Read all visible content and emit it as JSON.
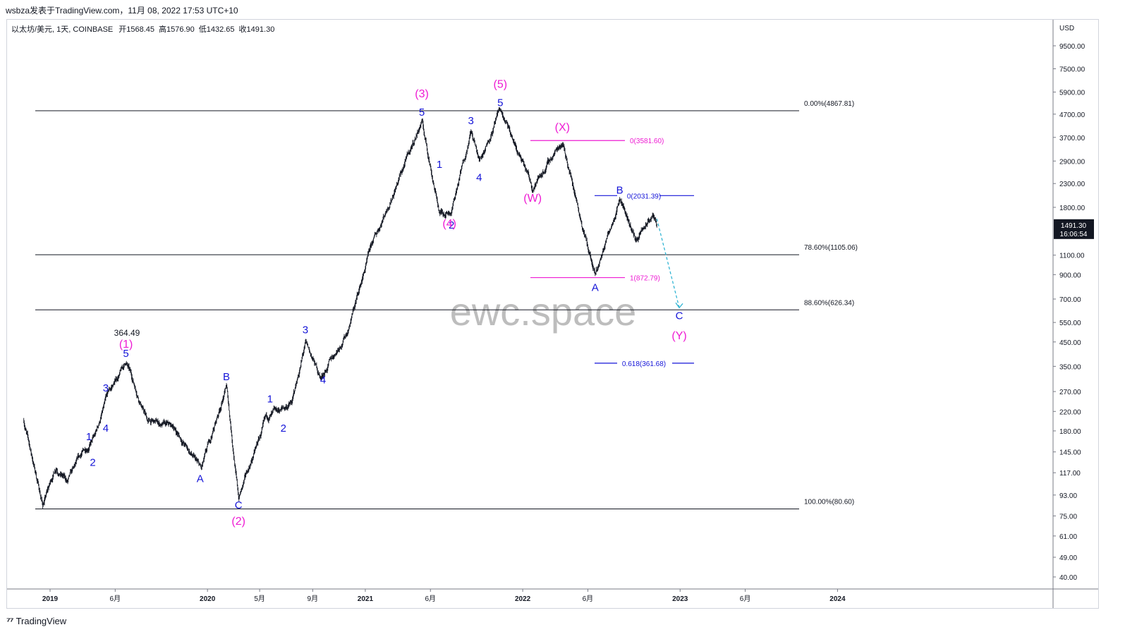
{
  "header": {
    "publisher_line": "wsbza发表于TradingView.com，11月 08, 2022 17:53 UTC+10"
  },
  "symbol_bar": {
    "name": "以太坊/美元, 1天, COINBASE",
    "open_label": "开",
    "open": "1568.45",
    "high_label": "高",
    "high": "1576.90",
    "low_label": "低",
    "low": "1432.65",
    "close_label": "收",
    "close": "1491.30"
  },
  "price_axis": {
    "currency": "USD",
    "ticks": [
      "9500.00",
      "7500.00",
      "5900.00",
      "4700.00",
      "3700.00",
      "2900.00",
      "2300.00",
      "1800.00",
      "1100.00",
      "900.00",
      "700.00",
      "550.00",
      "450.00",
      "350.00",
      "270.00",
      "220.00",
      "180.00",
      "145.00",
      "117.00",
      "93.00",
      "75.00",
      "61.00",
      "49.00",
      "40.00"
    ],
    "last_price": "1491.30",
    "countdown": "16:06:54"
  },
  "time_axis": {
    "ticks": [
      "2019",
      "6月",
      "2020",
      "5月",
      "9月",
      "2021",
      "6月",
      "2022",
      "6月",
      "2023",
      "6月",
      "2024"
    ],
    "bold": [
      true,
      false,
      true,
      false,
      false,
      true,
      false,
      true,
      false,
      true,
      false,
      true
    ]
  },
  "watermark": "ewc.space",
  "footer": {
    "brand": "TradingView"
  },
  "colors": {
    "candles": "#131722",
    "wave_blue": "#1515d8",
    "wave_magenta": "#ee1bd3",
    "projection": "#33b5d4",
    "fib_lines": "#131722"
  },
  "chart_data": {
    "type": "candlestick",
    "symbol": "以太坊/美元",
    "scale": "log",
    "ylim": [
      40,
      9500
    ],
    "xlim": [
      "2018-11",
      "2024-04"
    ],
    "price_path": [
      {
        "date": "2018-11-01",
        "price": 200
      },
      {
        "date": "2018-12-15",
        "price": 84
      },
      {
        "date": "2019-01-15",
        "price": 125
      },
      {
        "date": "2019-02-10",
        "price": 106
      },
      {
        "date": "2019-03-15",
        "price": 140
      },
      {
        "date": "2019-04-15",
        "price": 170
      },
      {
        "date": "2019-05-15",
        "price": 260
      },
      {
        "date": "2019-06-26",
        "price": 364.49
      },
      {
        "date": "2019-08-15",
        "price": 200
      },
      {
        "date": "2019-10-15",
        "price": 185
      },
      {
        "date": "2019-12-18",
        "price": 120
      },
      {
        "date": "2020-02-14",
        "price": 285
      },
      {
        "date": "2020-03-13",
        "price": 90
      },
      {
        "date": "2020-05-15",
        "price": 200
      },
      {
        "date": "2020-07-15",
        "price": 240
      },
      {
        "date": "2020-08-15",
        "price": 440
      },
      {
        "date": "2020-09-20",
        "price": 310
      },
      {
        "date": "2020-11-20",
        "price": 500
      },
      {
        "date": "2021-01-15",
        "price": 1200
      },
      {
        "date": "2021-05-12",
        "price": 4360
      },
      {
        "date": "2021-06-22",
        "price": 1700
      },
      {
        "date": "2021-07-20",
        "price": 1750
      },
      {
        "date": "2021-09-03",
        "price": 3950
      },
      {
        "date": "2021-09-22",
        "price": 2900
      },
      {
        "date": "2021-11-10",
        "price": 4867.81
      },
      {
        "date": "2022-01-24",
        "price": 2200
      },
      {
        "date": "2022-04-03",
        "price": 3581.6
      },
      {
        "date": "2022-06-18",
        "price": 872.79
      },
      {
        "date": "2022-08-14",
        "price": 2031.39
      },
      {
        "date": "2022-09-20",
        "price": 1280
      },
      {
        "date": "2022-10-30",
        "price": 1650
      },
      {
        "date": "2022-11-08",
        "price": 1491.3
      }
    ],
    "annotations": {
      "price_label": {
        "text": "364.49",
        "price": 364.49
      },
      "waves_blue": [
        {
          "t": "1",
          "date": "2019-04-01",
          "price": 170
        },
        {
          "t": "2",
          "date": "2019-04-10",
          "price": 130
        },
        {
          "t": "3",
          "date": "2019-05-10",
          "price": 280
        },
        {
          "t": "4",
          "date": "2019-05-10",
          "price": 185
        },
        {
          "t": "5",
          "date": "2019-06-26",
          "price": 400
        },
        {
          "t": "A",
          "date": "2019-12-15",
          "price": 110
        },
        {
          "t": "B",
          "date": "2020-02-14",
          "price": 315
        },
        {
          "t": "C",
          "date": "2020-03-13",
          "price": 84
        },
        {
          "t": "1",
          "date": "2020-05-25",
          "price": 250
        },
        {
          "t": "2",
          "date": "2020-06-25",
          "price": 185
        },
        {
          "t": "3",
          "date": "2020-08-15",
          "price": 510
        },
        {
          "t": "4",
          "date": "2020-09-25",
          "price": 305
        },
        {
          "t": "5",
          "date": "2021-05-12",
          "price": 4800
        },
        {
          "t": "1",
          "date": "2021-06-22",
          "price": 2800
        },
        {
          "t": "2",
          "date": "2021-07-20",
          "price": 1500
        },
        {
          "t": "3",
          "date": "2021-09-03",
          "price": 4400
        },
        {
          "t": "4",
          "date": "2021-09-22",
          "price": 2450
        },
        {
          "t": "5",
          "date": "2021-11-10",
          "price": 5300
        },
        {
          "t": "A",
          "date": "2022-06-18",
          "price": 790
        },
        {
          "t": "B",
          "date": "2022-08-14",
          "price": 2150
        },
        {
          "t": "C",
          "date": "2022-12-30",
          "price": 590
        }
      ],
      "waves_magenta": [
        {
          "t": "(1)",
          "date": "2019-06-26",
          "price": 440
        },
        {
          "t": "(2)",
          "date": "2020-03-13",
          "price": 71
        },
        {
          "t": "(3)",
          "date": "2021-05-12",
          "price": 5800
        },
        {
          "t": "(4)",
          "date": "2021-07-15",
          "price": 1520
        },
        {
          "t": "(5)",
          "date": "2021-11-10",
          "price": 6400
        },
        {
          "t": "(W)",
          "date": "2022-01-24",
          "price": 1980
        },
        {
          "t": "(X)",
          "date": "2022-04-03",
          "price": 4100
        },
        {
          "t": "(Y)",
          "date": "2022-12-30",
          "price": 480
        }
      ],
      "fib_levels": [
        {
          "label": "0.00%(4867.81)",
          "price": 4867.81
        },
        {
          "label": "78.60%(1105.06)",
          "price": 1105.06
        },
        {
          "label": "88.60%(626.34)",
          "price": 626.34
        },
        {
          "label": "100.00%(80.60)",
          "price": 80.6
        }
      ],
      "fib_magenta": [
        {
          "label": "0(3581.60)",
          "price": 3581.6
        },
        {
          "label": "1(872.79)",
          "price": 872.79
        }
      ],
      "fib_blue": [
        {
          "label": "0(2031.39)",
          "price": 2031.39
        },
        {
          "label": "0.618(361.68)",
          "price": 361.68
        }
      ],
      "projection": {
        "from": {
          "date": "2022-11-08",
          "price": 1600
        },
        "to": {
          "date": "2022-12-30",
          "price": 640
        }
      }
    }
  }
}
